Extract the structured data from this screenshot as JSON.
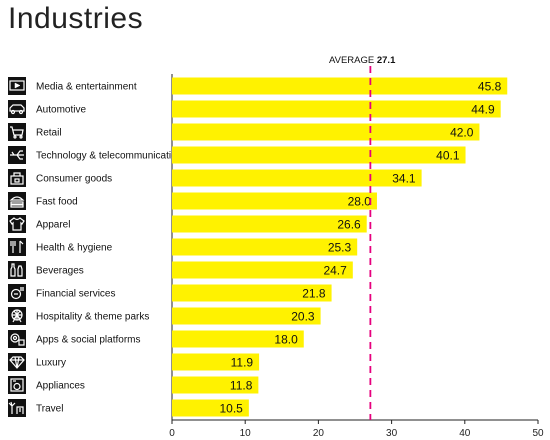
{
  "page": {
    "title": "Industries"
  },
  "chart_data": {
    "type": "bar",
    "orientation": "horizontal",
    "title": "Industries",
    "xlim": [
      0,
      50
    ],
    "xticks": [
      0,
      10,
      20,
      30,
      40,
      50
    ],
    "categories": [
      "Media & entertainment",
      "Automotive",
      "Retail",
      "Technology & telecommunications",
      "Consumer goods",
      "Fast food",
      "Apparel",
      "Health & hygiene",
      "Beverages",
      "Financial services",
      "Hospitality & theme parks",
      "Apps & social platforms",
      "Luxury",
      "Appliances",
      "Travel"
    ],
    "icons": [
      "media-screen-icon",
      "car-icon",
      "shopping-cart-icon",
      "usb-plug-icon",
      "shopping-bag-icon",
      "burger-icon",
      "tshirt-icon",
      "toothbrush-icon",
      "bottles-icon",
      "coins-icon",
      "ferris-wheel-icon",
      "app-icons-icon",
      "diamond-icon",
      "washing-machine-icon",
      "palm-tree-icon"
    ],
    "values": [
      45.8,
      44.9,
      42.0,
      40.1,
      34.1,
      28.0,
      26.6,
      25.3,
      24.7,
      21.8,
      20.3,
      18.0,
      11.9,
      11.8,
      10.5
    ],
    "value_labels": [
      "45.8",
      "44.9",
      "42.0",
      "40.1",
      "34.1",
      "28.0",
      "26.6",
      "25.3",
      "24.7",
      "21.8",
      "20.3",
      "18.0",
      "11.9",
      "11.8",
      "10.5"
    ],
    "average": {
      "label": "AVERAGE",
      "value": 27.1,
      "value_label": "27.1"
    },
    "colors": {
      "bar": "#fff200",
      "average_line": "#e6007e",
      "icon_bg": "#111111",
      "axis": "#222222"
    },
    "grid": false,
    "legend": "none"
  }
}
